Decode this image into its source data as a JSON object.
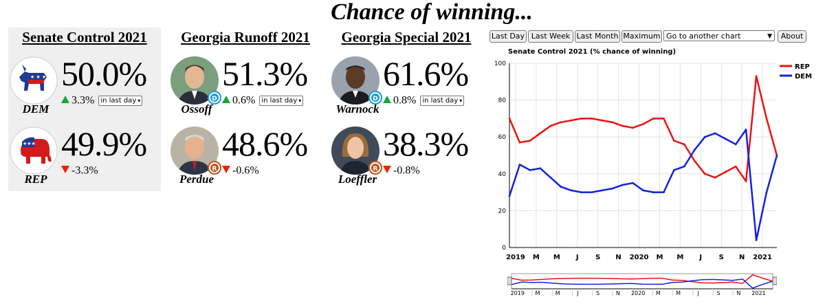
{
  "page_title": "Chance of winning...",
  "senate": {
    "title": "Senate Control 2021",
    "dem": {
      "name": "DEM",
      "pct": "50.0%",
      "change": "3.3%",
      "window": "in last day"
    },
    "rep": {
      "name": "REP",
      "pct": "49.9%",
      "change": "-3.3%"
    }
  },
  "runoff": {
    "title": "Georgia Runoff 2021",
    "dem": {
      "name": "Ossoff",
      "pct": "51.3%",
      "change": "0.6%",
      "window": "in last day",
      "badge": "D"
    },
    "rep": {
      "name": "Perdue",
      "pct": "48.6%",
      "change": "-0.6%",
      "badge": "R"
    }
  },
  "special": {
    "title": "Georgia Special 2021",
    "dem": {
      "name": "Warnock",
      "pct": "61.6%",
      "change": "0.8%",
      "window": "in last day",
      "badge": "D"
    },
    "rep": {
      "name": "Loeffler",
      "pct": "38.3%",
      "change": "-0.8%",
      "badge": "R"
    }
  },
  "colors": {
    "rep": "#ee1111",
    "dem": "#1122dd",
    "up": "#11aa33",
    "down": "#ee2200",
    "badge_dem": "#1a9bd7",
    "badge_rep": "#c0541b"
  },
  "toolbar": {
    "last_day": "Last Day",
    "last_week": "Last Week",
    "last_month": "Last Month",
    "maximum": "Maximum",
    "goto": "Go to another chart",
    "about": "About"
  },
  "chart_data": {
    "type": "line",
    "title": "Senate Control 2021 (% chance of winning)",
    "ylim": [
      0,
      100
    ],
    "y_ticks": [
      0,
      20,
      40,
      60,
      80,
      100
    ],
    "x_tick_labels": [
      "2019",
      "M",
      "M",
      "J",
      "S",
      "N",
      "2020",
      "M",
      "M",
      "J",
      "S",
      "N",
      "2021"
    ],
    "nav_tick_labels": [
      "2019",
      "M",
      "M",
      "J",
      "S",
      "N",
      "2020",
      "M",
      "M",
      "J",
      "S",
      "N",
      "2021"
    ],
    "grid": true,
    "legend": "top-right",
    "x": [
      "2018-11",
      "2018-12",
      "2019-01",
      "2019-02",
      "2019-03",
      "2019-04",
      "2019-05",
      "2019-06",
      "2019-07",
      "2019-08",
      "2019-09",
      "2019-10",
      "2019-11",
      "2019-12",
      "2020-01",
      "2020-02",
      "2020-03",
      "2020-04",
      "2020-05",
      "2020-06",
      "2020-07",
      "2020-08",
      "2020-09",
      "2020-10",
      "2020-11",
      "2020-12",
      "2021-01"
    ],
    "series": [
      {
        "name": "REP",
        "values": [
          70,
          57,
          58,
          62,
          66,
          68,
          69,
          70,
          70,
          69,
          68,
          66,
          65,
          67,
          70,
          70,
          58,
          56,
          47,
          40,
          38,
          41,
          44,
          36,
          93,
          70,
          50
        ]
      },
      {
        "name": "DEM",
        "values": [
          28,
          45,
          42,
          43,
          38,
          33,
          31,
          30,
          30,
          31,
          32,
          34,
          35,
          31,
          30,
          30,
          42,
          44,
          53,
          60,
          62,
          59,
          56,
          64,
          4,
          30,
          50
        ]
      }
    ]
  }
}
